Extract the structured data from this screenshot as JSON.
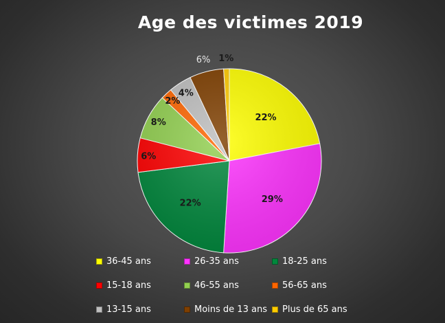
{
  "chart_data": {
    "type": "pie",
    "title": "Age des victimes 2019",
    "slices": [
      {
        "label": "36-45 ans",
        "value": 22,
        "display": "22%",
        "color": "#ffff00"
      },
      {
        "label": "26-35 ans",
        "value": 29,
        "display": "29%",
        "color": "#ff33ff"
      },
      {
        "label": "18-25 ans",
        "value": 22,
        "display": "22%",
        "color": "#00873c"
      },
      {
        "label": "15-18 ans",
        "value": 6,
        "display": "6%",
        "color": "#ff0000"
      },
      {
        "label": "46-55 ans",
        "value": 8,
        "display": "8%",
        "color": "#92d050"
      },
      {
        "label": "56-65 ans",
        "value": 2,
        "display": "2%",
        "color": "#ff6600"
      },
      {
        "label": "13-15 ans",
        "value": 4,
        "display": "4%",
        "color": "#bfbfbf"
      },
      {
        "label": "Moins de 13 ans",
        "value": 6,
        "display": "6%",
        "color": "#7f3f00"
      },
      {
        "label": "Plus de 65 ans",
        "value": 1,
        "display": "1%",
        "color": "#ffcc00"
      }
    ],
    "legend_position": "bottom"
  }
}
